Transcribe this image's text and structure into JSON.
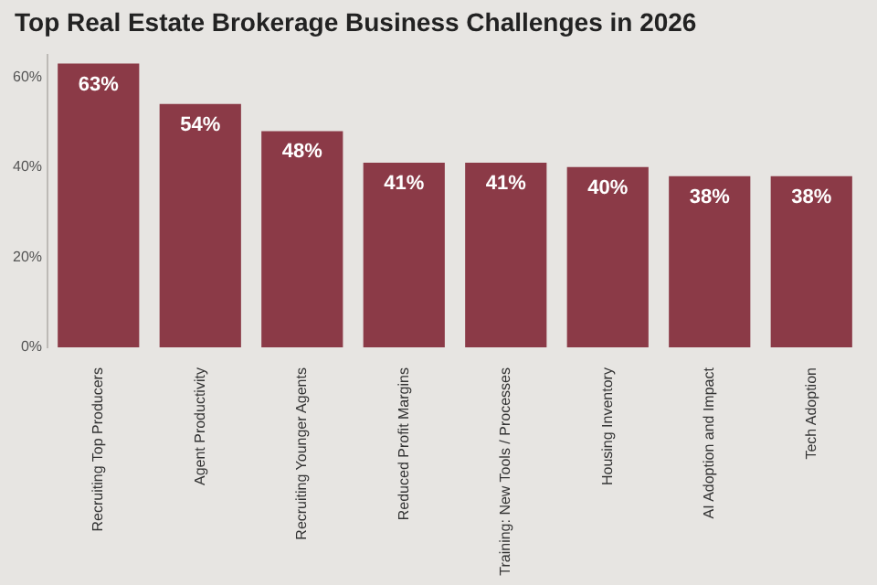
{
  "chart_data": {
    "type": "bar",
    "title": "Top Real Estate Brokerage Business Challenges in 2026",
    "categories": [
      "Recruiting Top Producers",
      "Agent Productivity",
      "Recruiting Younger Agents",
      "Reduced Profit Margins",
      "Training: New Tools / Processes",
      "Housing Inventory",
      "AI Adoption and Impact",
      "Tech Adoption"
    ],
    "values": [
      63,
      54,
      48,
      41,
      41,
      40,
      38,
      38
    ],
    "value_labels": [
      "63%",
      "54%",
      "48%",
      "41%",
      "41%",
      "40%",
      "38%",
      "38%"
    ],
    "color": "#8b3a47",
    "ylim": [
      0,
      65
    ],
    "yticks": [
      {
        "value": 0,
        "label": "0%"
      },
      {
        "value": 20,
        "label": "20%"
      },
      {
        "value": 40,
        "label": "40%"
      },
      {
        "value": 60,
        "label": "60%"
      }
    ],
    "grid": false,
    "legend": false
  }
}
